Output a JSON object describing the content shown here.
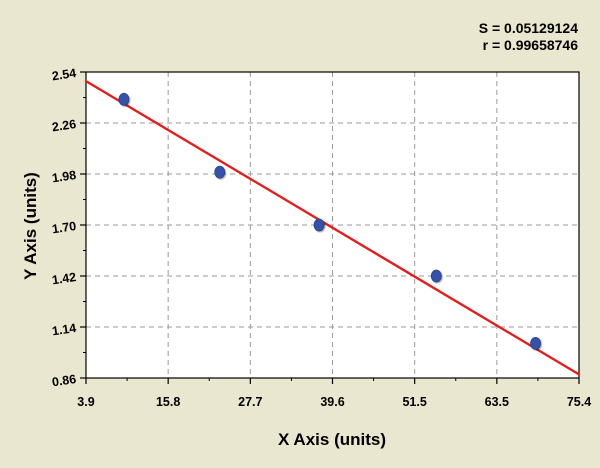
{
  "stats": {
    "s_label": "S = 0.05129124",
    "r_label": "r = 0.99658746"
  },
  "chart_data": {
    "type": "scatter",
    "title": "",
    "xlabel": "X Axis (units)",
    "ylabel": "Y Axis (units)",
    "xlim": [
      3.9,
      75.4
    ],
    "ylim": [
      0.86,
      2.54
    ],
    "x_ticks": [
      "3.9",
      "15.8",
      "27.7",
      "39.6",
      "51.5",
      "63.5",
      "75.4"
    ],
    "y_ticks": [
      "0.86",
      "1.14",
      "1.42",
      "1.70",
      "1.98",
      "2.26",
      "2.54"
    ],
    "grid": true,
    "series": [
      {
        "type": "scatter",
        "color": "#3651a8",
        "x": [
          9.4,
          23.3,
          37.7,
          54.7,
          69.1
        ],
        "y": [
          2.39,
          1.99,
          1.7,
          1.42,
          1.05
        ]
      }
    ],
    "fit_line": {
      "color": "#e02020",
      "x": [
        3.9,
        75.4
      ],
      "y": [
        2.49,
        0.88
      ]
    }
  }
}
